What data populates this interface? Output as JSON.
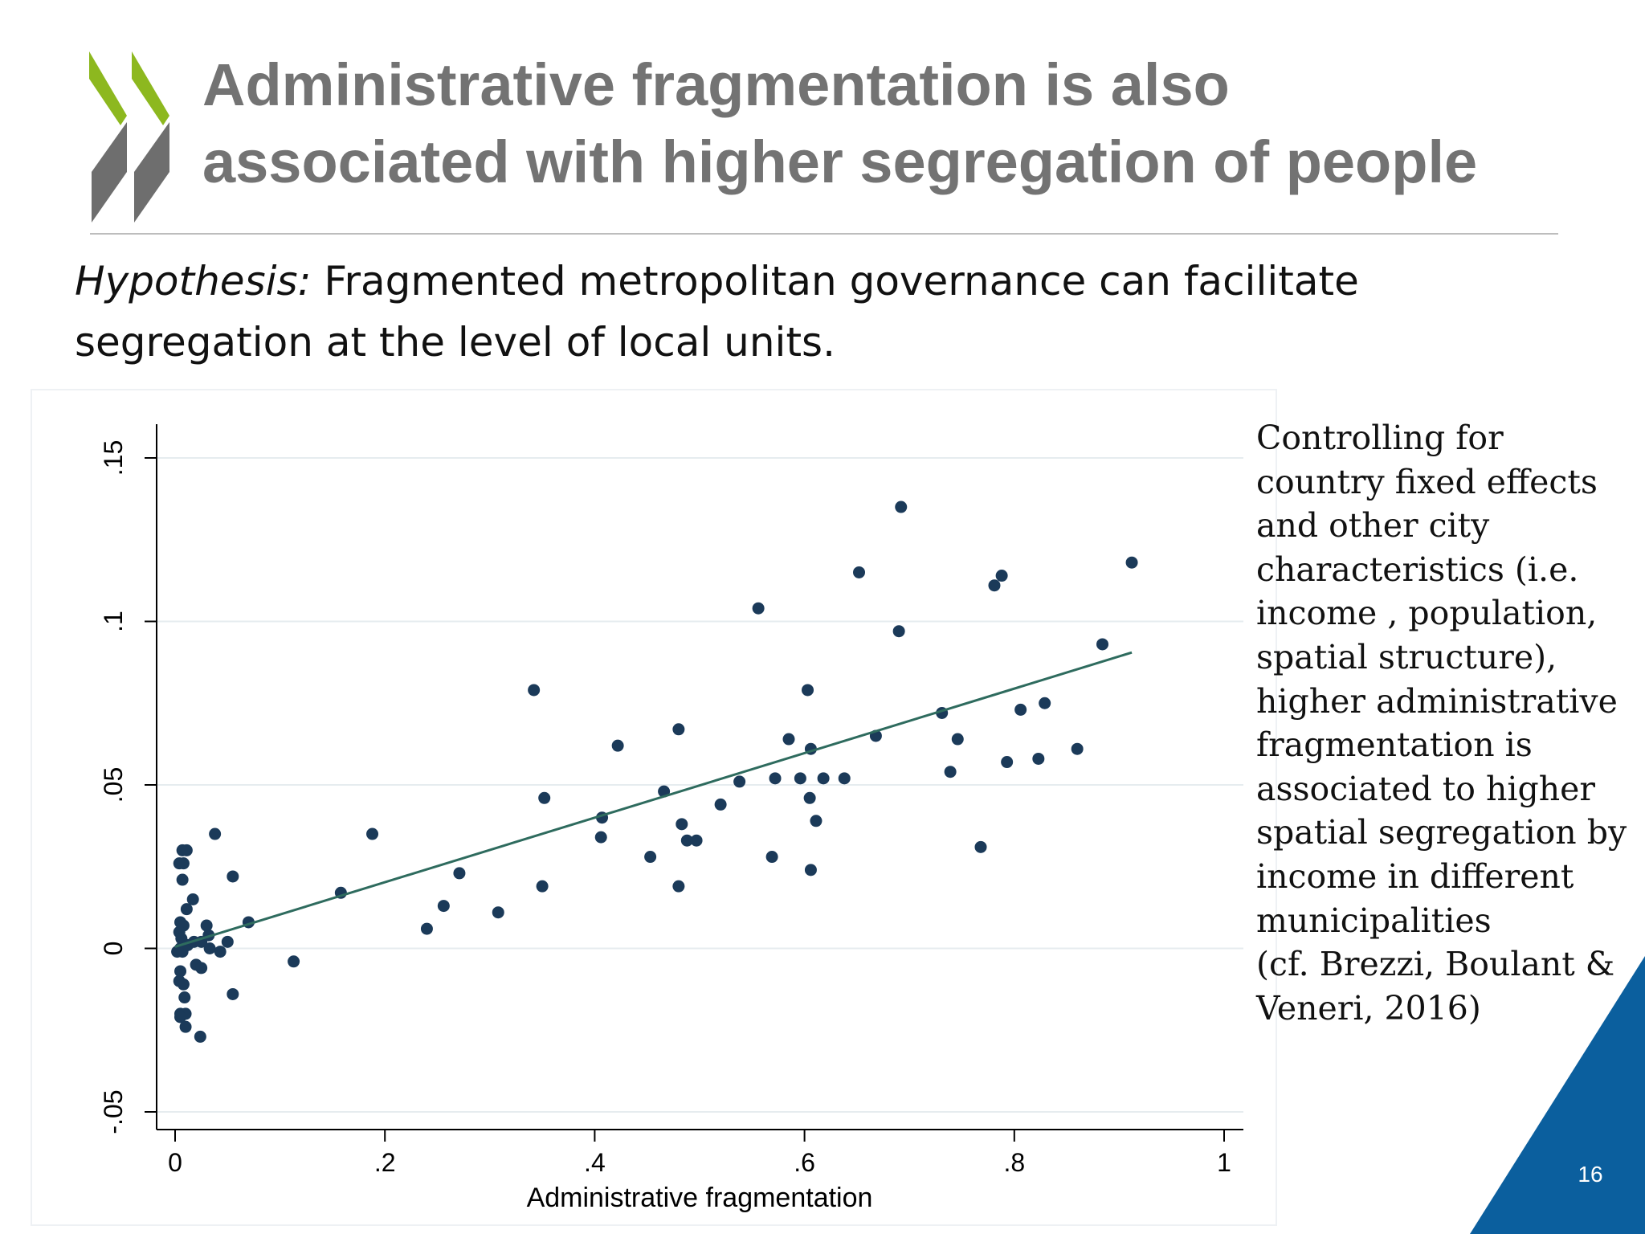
{
  "slide": {
    "title_lines": [
      "Administrative fragmentation is also",
      "associated with higher segregation of people"
    ],
    "hypothesis_label": "Hypothesis:",
    "hypothesis_line1": " Fragmented metropolitan governance can facilitate",
    "hypothesis_line2": "segregation at the level of local units.",
    "side_note_lines": [
      "Controlling for",
      "country fixed effects",
      "and other city",
      "characteristics (i.e.",
      "income , population,",
      "spatial structure),",
      "higher administrative",
      "fragmentation is",
      "associated to higher",
      "spatial segregation by",
      "income in different",
      "municipalities",
      "(cf. Brezzi, Boulant &",
      "Veneri, 2016)"
    ],
    "page_number": "16",
    "colors": {
      "title": "#737373",
      "logo_green": "#8db81f",
      "logo_gray": "#6e6e6e",
      "corner_blue": "#0b5f9e",
      "point": "#1b3a59",
      "fit_line": "#2e6b5e"
    }
  },
  "chart_data": {
    "type": "scatter",
    "title": "",
    "xlabel": "Administrative fragmentation",
    "ylabel": "",
    "xlim": [
      0,
      1
    ],
    "ylim": [
      -0.05,
      0.15
    ],
    "xticks": [
      0,
      0.2,
      0.4,
      0.6,
      0.8,
      1
    ],
    "xtick_labels": [
      "0",
      ".2",
      ".4",
      ".6",
      ".8",
      "1"
    ],
    "yticks": [
      -0.05,
      0,
      0.05,
      0.1,
      0.15
    ],
    "ytick_labels": [
      "-.05",
      "0",
      ".05",
      ".1",
      ".15"
    ],
    "grid": true,
    "fit_line": {
      "x": [
        0,
        0.912
      ],
      "y": [
        0.0005,
        0.0905
      ]
    },
    "points": [
      [
        0.007,
        0.03
      ],
      [
        0.011,
        0.03
      ],
      [
        0.004,
        0.026
      ],
      [
        0.008,
        0.026
      ],
      [
        0.007,
        0.021
      ],
      [
        0.017,
        0.015
      ],
      [
        0.011,
        0.012
      ],
      [
        0.005,
        0.008
      ],
      [
        0.008,
        0.007
      ],
      [
        0.004,
        0.005
      ],
      [
        0.006,
        0.003
      ],
      [
        0.005,
        0.0
      ],
      [
        0.002,
        -0.001
      ],
      [
        0.007,
        -0.001
      ],
      [
        0.012,
        0.001
      ],
      [
        0.005,
        -0.007
      ],
      [
        0.004,
        -0.01
      ],
      [
        0.008,
        -0.011
      ],
      [
        0.009,
        -0.015
      ],
      [
        0.005,
        -0.02
      ],
      [
        0.01,
        -0.02
      ],
      [
        0.005,
        -0.021
      ],
      [
        0.01,
        -0.024
      ],
      [
        0.024,
        -0.027
      ],
      [
        0.02,
        -0.005
      ],
      [
        0.025,
        -0.006
      ],
      [
        0.018,
        0.002
      ],
      [
        0.025,
        0.002
      ],
      [
        0.032,
        0.004
      ],
      [
        0.03,
        0.007
      ],
      [
        0.033,
        0.0
      ],
      [
        0.043,
        -0.001
      ],
      [
        0.05,
        0.002
      ],
      [
        0.038,
        0.035
      ],
      [
        0.055,
        0.022
      ],
      [
        0.07,
        0.008
      ],
      [
        0.055,
        -0.014
      ],
      [
        0.113,
        -0.004
      ],
      [
        0.158,
        0.017
      ],
      [
        0.188,
        0.035
      ],
      [
        0.24,
        0.006
      ],
      [
        0.256,
        0.013
      ],
      [
        0.271,
        0.023
      ],
      [
        0.308,
        0.011
      ],
      [
        0.342,
        0.079
      ],
      [
        0.35,
        0.019
      ],
      [
        0.352,
        0.046
      ],
      [
        0.406,
        0.034
      ],
      [
        0.407,
        0.04
      ],
      [
        0.422,
        0.062
      ],
      [
        0.453,
        0.028
      ],
      [
        0.466,
        0.048
      ],
      [
        0.48,
        0.019
      ],
      [
        0.48,
        0.067
      ],
      [
        0.483,
        0.038
      ],
      [
        0.488,
        0.033
      ],
      [
        0.497,
        0.033
      ],
      [
        0.52,
        0.044
      ],
      [
        0.538,
        0.051
      ],
      [
        0.556,
        0.104
      ],
      [
        0.569,
        0.028
      ],
      [
        0.572,
        0.052
      ],
      [
        0.585,
        0.064
      ],
      [
        0.596,
        0.052
      ],
      [
        0.603,
        0.079
      ],
      [
        0.605,
        0.046
      ],
      [
        0.606,
        0.061
      ],
      [
        0.606,
        0.024
      ],
      [
        0.611,
        0.039
      ],
      [
        0.618,
        0.052
      ],
      [
        0.638,
        0.052
      ],
      [
        0.652,
        0.115
      ],
      [
        0.668,
        0.065
      ],
      [
        0.69,
        0.097
      ],
      [
        0.692,
        0.135
      ],
      [
        0.731,
        0.072
      ],
      [
        0.739,
        0.054
      ],
      [
        0.746,
        0.064
      ],
      [
        0.768,
        0.031
      ],
      [
        0.781,
        0.111
      ],
      [
        0.788,
        0.114
      ],
      [
        0.793,
        0.057
      ],
      [
        0.806,
        0.073
      ],
      [
        0.823,
        0.058
      ],
      [
        0.829,
        0.075
      ],
      [
        0.86,
        0.061
      ],
      [
        0.884,
        0.093
      ],
      [
        0.912,
        0.118
      ]
    ]
  }
}
